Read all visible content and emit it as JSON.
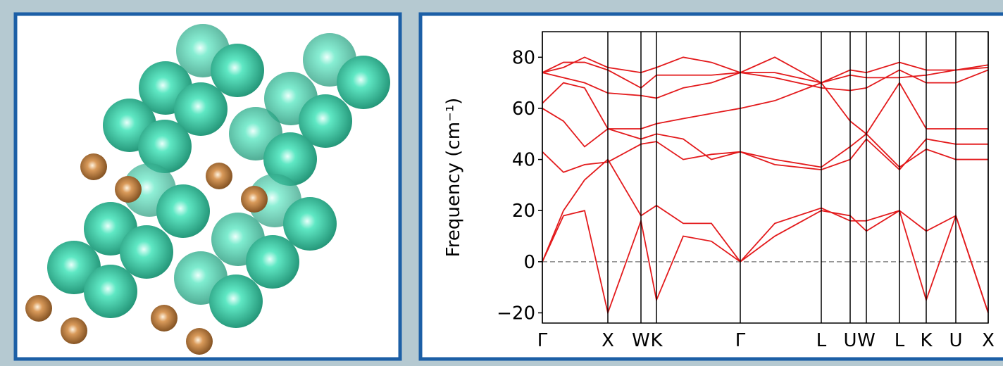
{
  "chart_data": {
    "type": "line",
    "y_label": "Frequency (cm⁻¹)",
    "x": [
      0,
      30,
      60,
      93,
      140,
      162,
      200,
      240,
      281,
      330,
      396,
      437,
      460,
      507,
      545,
      587,
      633
    ],
    "xlim": [
      0,
      633
    ],
    "xticks": [
      {
        "value": 0,
        "label": "Γ"
      },
      {
        "value": 93,
        "label": "X"
      },
      {
        "value": 140,
        "label": "W"
      },
      {
        "value": 162,
        "label": "K"
      },
      {
        "value": 281,
        "label": "Γ"
      },
      {
        "value": 396,
        "label": "L"
      },
      {
        "value": 437,
        "label": "U"
      },
      {
        "value": 460,
        "label": "W"
      },
      {
        "value": 507,
        "label": "L"
      },
      {
        "value": 545,
        "label": "K"
      },
      {
        "value": 587,
        "label": "U"
      },
      {
        "value": 633,
        "label": "X"
      }
    ],
    "ylim": [
      -24,
      90
    ],
    "yticks": [
      {
        "value": -20,
        "label": "−20"
      },
      0,
      20,
      40,
      60,
      80
    ],
    "zero_line": true,
    "series": [
      {
        "color": "#e31a1c",
        "values": [
          0,
          18,
          20,
          -20,
          16,
          -15,
          10,
          8,
          0,
          10,
          20,
          18,
          12,
          20,
          -15,
          18,
          -20
        ]
      },
      {
        "color": "#e31a1c",
        "values": [
          0,
          20,
          32,
          40,
          18,
          22,
          15,
          15,
          0,
          15,
          21,
          16,
          16,
          20,
          12,
          18,
          -20
        ]
      },
      {
        "color": "#e31a1c",
        "values": [
          43,
          35,
          38,
          39,
          46,
          47,
          40,
          42,
          43,
          40,
          37,
          45,
          50,
          37,
          44,
          40,
          40
        ]
      },
      {
        "color": "#e31a1c",
        "values": [
          60,
          55,
          45,
          52,
          52,
          54,
          56,
          58,
          60,
          63,
          70,
          55,
          50,
          70,
          52,
          52,
          52
        ]
      },
      {
        "color": "#e31a1c",
        "values": [
          62,
          70,
          68,
          52,
          48,
          50,
          48,
          40,
          43,
          38,
          36,
          40,
          48,
          36,
          48,
          46,
          46
        ]
      },
      {
        "color": "#e31a1c",
        "values": [
          74,
          78,
          78,
          75,
          68,
          73,
          73,
          73,
          74,
          74,
          70,
          73,
          72,
          72,
          73,
          75,
          77
        ]
      },
      {
        "color": "#e31a1c",
        "values": [
          74,
          72,
          70,
          66,
          65,
          64,
          68,
          70,
          74,
          72,
          68,
          67,
          68,
          75,
          70,
          70,
          75
        ]
      },
      {
        "color": "#e31a1c",
        "values": [
          74,
          76,
          80,
          76,
          74,
          76,
          80,
          78,
          74,
          80,
          70,
          75,
          74,
          78,
          75,
          75,
          76
        ]
      }
    ]
  }
}
